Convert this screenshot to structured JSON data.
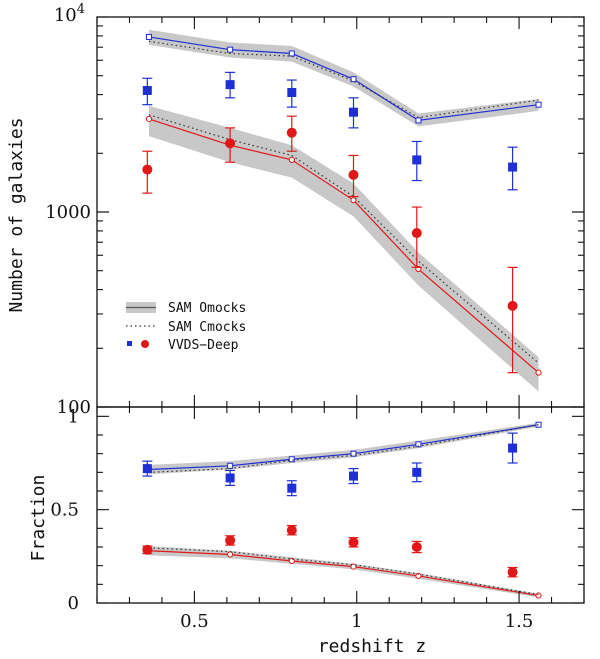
{
  "chart_data": [
    {
      "type": "line",
      "panel": "top",
      "ylabel": "Number of galaxies",
      "xlabel": "",
      "xlim": [
        0.2,
        1.7
      ],
      "ylim": [
        100,
        10000
      ],
      "yscale": "log",
      "x_ticks": [
        0.5,
        1,
        1.5
      ],
      "y_tick_labels": [
        {
          "value": 100,
          "label": "100"
        },
        {
          "value": 1000,
          "label": "1000"
        },
        {
          "value": 10000,
          "label": "10",
          "exponent": "4"
        }
      ],
      "legend": {
        "placement": "lower-left",
        "entries": [
          {
            "label": "SAM Omocks",
            "style": "band"
          },
          {
            "label": "SAM Cmocks",
            "style": "dotted"
          },
          {
            "label": "VVDS−Deep",
            "style": "markers"
          }
        ]
      },
      "series": [
        {
          "group": "blue",
          "kind": "sam_omocks",
          "color": "#1f2fd6",
          "x": [
            0.36,
            0.61,
            0.8,
            0.99,
            1.19,
            1.56
          ],
          "y": [
            7900,
            6800,
            6500,
            4800,
            2950,
            3550
          ],
          "band_low": [
            7200,
            6200,
            5900,
            4400,
            2750,
            3300
          ],
          "band_high": [
            8600,
            7400,
            7100,
            5200,
            3200,
            3800
          ]
        },
        {
          "group": "blue",
          "kind": "sam_cmocks",
          "color": "#1f2fd6",
          "x": [
            0.36,
            0.61,
            0.8,
            0.99,
            1.19,
            1.56
          ],
          "y": [
            7500,
            6500,
            6300,
            4700,
            3050,
            3750
          ]
        },
        {
          "group": "blue",
          "kind": "vvds_deep",
          "color": "#1f2fd6",
          "marker": "square",
          "x": [
            0.355,
            0.61,
            0.8,
            0.99,
            1.185,
            1.48
          ],
          "y": [
            4200,
            4500,
            4100,
            3250,
            1850,
            1700
          ],
          "err_low": [
            3550,
            3850,
            3450,
            2700,
            1450,
            1300
          ],
          "err_high": [
            4850,
            5200,
            4750,
            3850,
            2300,
            2150
          ]
        },
        {
          "group": "red",
          "kind": "sam_omocks",
          "color": "#e01818",
          "x": [
            0.36,
            0.61,
            0.8,
            0.99,
            1.19,
            1.56
          ],
          "y": [
            3000,
            2200,
            1850,
            1150,
            510,
            150
          ],
          "band_low": [
            2450,
            1800,
            1500,
            950,
            420,
            120
          ],
          "band_high": [
            3500,
            2700,
            2200,
            1400,
            620,
            180
          ]
        },
        {
          "group": "red",
          "kind": "sam_cmocks",
          "color": "#e01818",
          "x": [
            0.36,
            0.61,
            0.8,
            0.99,
            1.19,
            1.56
          ],
          "y": [
            3150,
            2350,
            1950,
            1200,
            560,
            168
          ]
        },
        {
          "group": "red",
          "kind": "vvds_deep",
          "color": "#e01818",
          "marker": "circle",
          "x": [
            0.355,
            0.61,
            0.8,
            0.99,
            1.185,
            1.48
          ],
          "y": [
            1650,
            2250,
            2550,
            1550,
            780,
            330
          ],
          "err_low": [
            1250,
            1800,
            2050,
            1200,
            520,
            150
          ],
          "err_high": [
            2050,
            2700,
            3100,
            1950,
            1060,
            520
          ]
        }
      ]
    },
    {
      "type": "line",
      "panel": "bottom",
      "ylabel": "Fraction",
      "xlabel": "redshift z",
      "xlim": [
        0.2,
        1.7
      ],
      "ylim": [
        0,
        1.05
      ],
      "x_ticks": [
        0.5,
        1,
        1.5
      ],
      "x_tick_labels": [
        "0.5",
        "1",
        "1.5"
      ],
      "y_ticks": [
        0,
        0.5,
        1
      ],
      "y_tick_labels": [
        "0",
        "0.5",
        "1"
      ],
      "series": [
        {
          "group": "blue",
          "kind": "sam_omocks",
          "color": "#1f2fd6",
          "x": [
            0.36,
            0.61,
            0.8,
            0.99,
            1.19,
            1.56
          ],
          "y": [
            0.715,
            0.735,
            0.77,
            0.8,
            0.85,
            0.955
          ],
          "band_low": [
            0.69,
            0.715,
            0.75,
            0.78,
            0.83,
            0.945
          ],
          "band_high": [
            0.74,
            0.76,
            0.79,
            0.82,
            0.87,
            0.965
          ]
        },
        {
          "group": "blue",
          "kind": "sam_cmocks",
          "color": "#1f2fd6",
          "x": [
            0.36,
            0.61,
            0.8,
            0.99,
            1.19,
            1.56
          ],
          "y": [
            0.7,
            0.72,
            0.765,
            0.79,
            0.84,
            0.955
          ]
        },
        {
          "group": "blue",
          "kind": "vvds_deep",
          "color": "#1f2fd6",
          "marker": "square",
          "x": [
            0.355,
            0.61,
            0.8,
            0.99,
            1.185,
            1.48
          ],
          "y": [
            0.72,
            0.67,
            0.615,
            0.68,
            0.7,
            0.83
          ],
          "err_low": [
            0.68,
            0.63,
            0.575,
            0.64,
            0.65,
            0.75
          ],
          "err_high": [
            0.76,
            0.71,
            0.655,
            0.72,
            0.75,
            0.91
          ]
        },
        {
          "group": "red",
          "kind": "sam_omocks",
          "color": "#e01818",
          "x": [
            0.36,
            0.61,
            0.8,
            0.99,
            1.19,
            1.56
          ],
          "y": [
            0.28,
            0.26,
            0.225,
            0.195,
            0.145,
            0.04
          ],
          "band_low": [
            0.255,
            0.24,
            0.21,
            0.18,
            0.13,
            0.03
          ],
          "band_high": [
            0.305,
            0.28,
            0.245,
            0.21,
            0.16,
            0.05
          ]
        },
        {
          "group": "red",
          "kind": "sam_cmocks",
          "color": "#e01818",
          "x": [
            0.36,
            0.61,
            0.8,
            0.99,
            1.19,
            1.56
          ],
          "y": [
            0.295,
            0.275,
            0.235,
            0.205,
            0.155,
            0.045
          ]
        },
        {
          "group": "red",
          "kind": "vvds_deep",
          "color": "#e01818",
          "marker": "circle",
          "x": [
            0.355,
            0.61,
            0.8,
            0.99,
            1.185,
            1.48
          ],
          "y": [
            0.285,
            0.335,
            0.39,
            0.325,
            0.3,
            0.165
          ],
          "err_low": [
            0.265,
            0.31,
            0.365,
            0.3,
            0.27,
            0.14
          ],
          "err_high": [
            0.305,
            0.36,
            0.415,
            0.35,
            0.33,
            0.19
          ]
        }
      ]
    }
  ],
  "colors": {
    "band": "#c8c8c8",
    "axis": "#111111"
  }
}
